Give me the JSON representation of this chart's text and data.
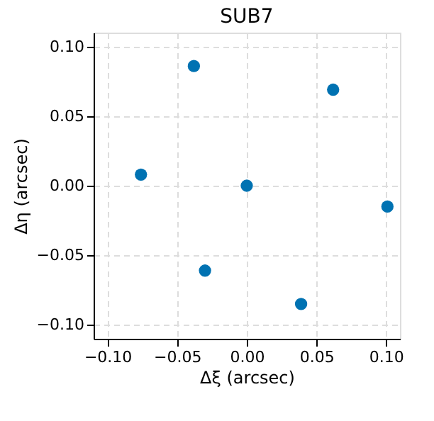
{
  "chart_data": {
    "type": "scatter",
    "title": "SUB7",
    "xlabel": "Δξ (arcsec)",
    "ylabel": "Δη (arcsec)",
    "x": [
      -0.038,
      0.062,
      -0.076,
      0.0,
      0.101,
      -0.03,
      0.039
    ],
    "values": [
      0.086,
      0.069,
      0.008,
      0.0,
      -0.015,
      -0.061,
      -0.085
    ],
    "color": "#0072b2",
    "marker": "circle",
    "grid": true,
    "xlim": [
      -0.11,
      0.11
    ],
    "ylim": [
      -0.11,
      0.11
    ],
    "xticks": [
      {
        "value": -0.1,
        "label": "−0.10"
      },
      {
        "value": -0.05,
        "label": "−0.05"
      },
      {
        "value": 0,
        "label": "0.00"
      },
      {
        "value": 0.05,
        "label": "0.05"
      },
      {
        "value": 0.1,
        "label": "0.10"
      }
    ],
    "yticks": [
      {
        "value": -0.1,
        "label": "−0.10"
      },
      {
        "value": -0.05,
        "label": "−0.05"
      },
      {
        "value": 0,
        "label": "0.00"
      },
      {
        "value": 0.05,
        "label": "0.05"
      },
      {
        "value": 0.1,
        "label": "0.10"
      }
    ]
  }
}
